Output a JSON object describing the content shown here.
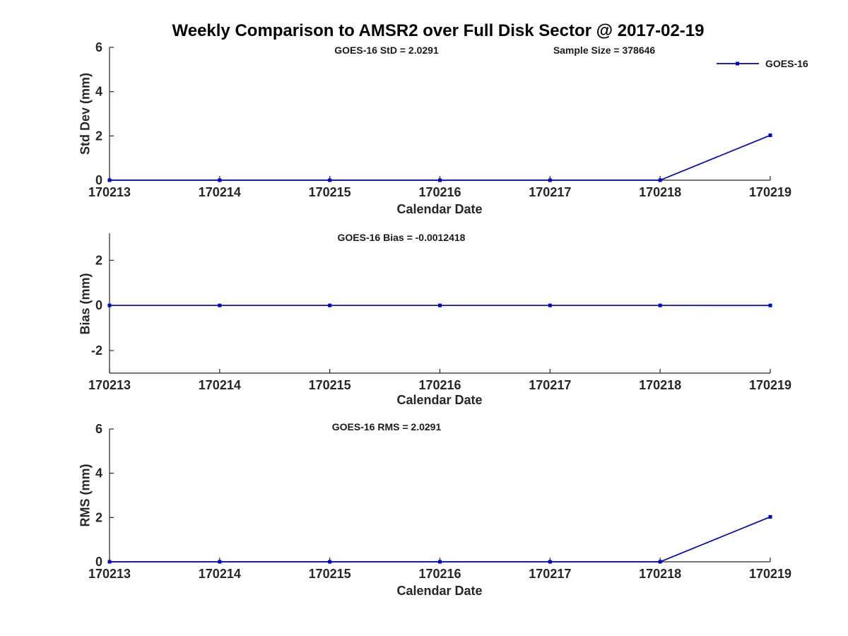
{
  "title": "Weekly Comparison to AMSR2 over Full Disk Sector @ 2017-02-19",
  "legend": {
    "label": "GOES-16"
  },
  "stats": {
    "goes16_std": 2.0291,
    "sample_size": 378646,
    "goes16_bias": -0.0012418,
    "goes16_rms": 2.0291
  },
  "chart_data": [
    {
      "type": "line",
      "title": "GOES-16 StD = 2.0291",
      "annotation_right": "Sample Size = 378646",
      "xlabel": "Calendar Date",
      "ylabel": "Std Dev (mm)",
      "categories": [
        "170213",
        "170214",
        "170215",
        "170216",
        "170217",
        "170218",
        "170219"
      ],
      "series": [
        {
          "name": "GOES-16",
          "values": [
            0,
            0,
            0,
            0,
            0,
            0,
            2.0291
          ]
        }
      ],
      "ylim": [
        0,
        6
      ],
      "yticks": [
        0,
        2,
        4,
        6
      ],
      "line_color": "#0000CC",
      "marker": "square",
      "grid": false,
      "legend_position": "top-right"
    },
    {
      "type": "line",
      "title": "GOES-16 Bias  = -0.0012418",
      "annotation_right": "",
      "xlabel": "Calendar Date",
      "ylabel": "Bias (mm)",
      "categories": [
        "170213",
        "170214",
        "170215",
        "170216",
        "170217",
        "170218",
        "170219"
      ],
      "series": [
        {
          "name": "GOES-16",
          "values": [
            0,
            0,
            0,
            0,
            0,
            0,
            -0.0012418
          ]
        }
      ],
      "ylim": [
        -3,
        3.2
      ],
      "yticks": [
        -2,
        0,
        2
      ],
      "line_color": "#0000CC",
      "marker": "square",
      "grid": false,
      "legend_position": "none"
    },
    {
      "type": "line",
      "title": "GOES-16 RMS = 2.0291",
      "annotation_right": "",
      "xlabel": "Calendar Date",
      "ylabel": "RMS (mm)",
      "categories": [
        "170213",
        "170214",
        "170215",
        "170216",
        "170217",
        "170218",
        "170219"
      ],
      "series": [
        {
          "name": "GOES-16",
          "values": [
            0,
            0,
            0,
            0,
            0,
            0,
            2.0291
          ]
        }
      ],
      "ylim": [
        0,
        6
      ],
      "yticks": [
        0,
        2,
        4,
        6
      ],
      "line_color": "#0000CC",
      "marker": "square",
      "grid": false,
      "legend_position": "none"
    }
  ]
}
